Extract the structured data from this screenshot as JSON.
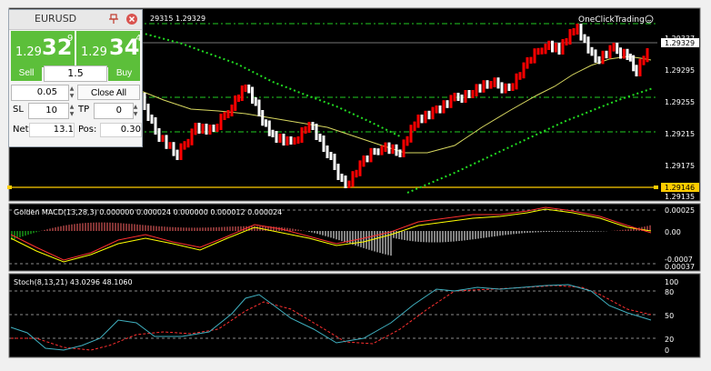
{
  "trade_panel": {
    "symbol": "EURUSD",
    "pin_icon": "pin-icon",
    "close_icon": "close-circle-icon",
    "sell": {
      "prefix": "1.29",
      "big": "32",
      "sup": "9",
      "label": "Sell"
    },
    "buy": {
      "prefix": "1.29",
      "big": "34",
      "sup": "4",
      "label": "Buy"
    },
    "lot": "1.5",
    "step": "0.05",
    "close_all": "Close All",
    "sl_label": "SL",
    "sl_value": "10",
    "tp_label": "TP",
    "tp_value": "0",
    "net_label": "Net:",
    "net_value": "13.1",
    "pos_label": "Pos:",
    "pos_value": "0.30",
    "accent_color": "#5cbf3a"
  },
  "main_chart": {
    "header_text": "29315 1.29329",
    "brand_label": "OneClickTrading",
    "brand_icon": "smiley-icon",
    "price_labels": [
      "1.29337",
      "1.29329",
      "1.29295",
      "1.29255",
      "1.29215",
      "1.29175",
      "1.29146",
      "1.29135"
    ],
    "current_price": "1.29329",
    "highlight_level": "1.29146",
    "colors": {
      "background": "#000000",
      "bull": "#ffffff",
      "bear": "#ff0000",
      "moving_average": "#d8d860",
      "trendline": "#22dd22",
      "level": "#ffcc00"
    }
  },
  "macd": {
    "title": "Golden MACD(13,28,3) 0.000000 0.000024 0.000000 0.000012 0.000024",
    "axis_labels": [
      "0.00025",
      "0.00",
      "-0.0007",
      "0.00037"
    ],
    "colors": {
      "positive": "#ff6666",
      "negative": "#22dd22",
      "signal": "#ffff00"
    }
  },
  "stoch": {
    "title": "Stoch(8,13,21) 43.0296 48.1060",
    "axis_labels": [
      "100",
      "80",
      "50",
      "20",
      "0"
    ],
    "colors": {
      "main": "#40b0c0",
      "signal": "#ff3030"
    }
  },
  "chart_data": [
    {
      "type": "candlestick",
      "title": "",
      "symbol": "EURUSD",
      "ylim": [
        1.29135,
        1.29337
      ],
      "y_ticks": [
        1.29295,
        1.29255,
        1.29215,
        1.29175,
        1.29135
      ],
      "last": 1.29329,
      "marked_level": 1.29146
    },
    {
      "type": "bar",
      "title": "Golden MACD(13,28,3)",
      "values_shown": [
        0.0,
        2.4e-05,
        0.0,
        1.2e-05,
        2.4e-05
      ],
      "ylim": [
        -0.00037,
        0.00025
      ]
    },
    {
      "type": "line",
      "title": "Stoch(8,13,21)",
      "series": [
        {
          "name": "Main",
          "last": 43.0296
        },
        {
          "name": "Signal",
          "last": 48.106
        }
      ],
      "levels": [
        80,
        50,
        20
      ],
      "ylim": [
        0,
        100
      ]
    }
  ]
}
